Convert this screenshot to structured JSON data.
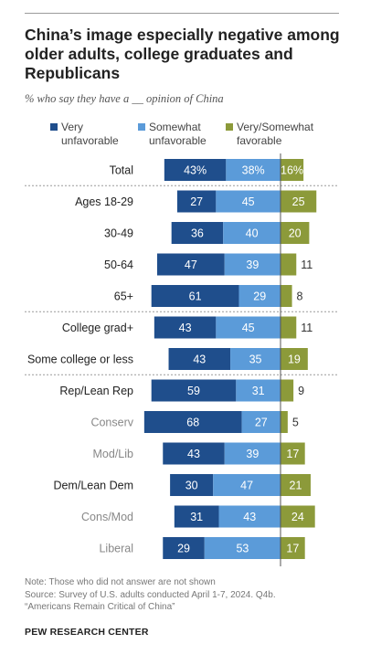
{
  "title": "China’s image especially negative among older adults, college graduates and Republicans",
  "subtitle": "% who say they have a __ opinion of China",
  "legend": [
    {
      "line1": "Very",
      "line2": "unfavorable",
      "color": "#1f4e8c"
    },
    {
      "line1": "Somewhat",
      "line2": "unfavorable",
      "color": "#5b9bd9"
    },
    {
      "line1": "Very/Somewhat",
      "line2": "favorable",
      "color": "#8c9a3a"
    }
  ],
  "chart_data": {
    "type": "bar",
    "stacked": "diverging",
    "series": [
      {
        "name": "Very unfavorable",
        "color": "#1f4e8c"
      },
      {
        "name": "Somewhat unfavorable",
        "color": "#5b9bd9"
      },
      {
        "name": "Very/Somewhat favorable",
        "color": "#8c9a3a"
      }
    ],
    "rows": [
      {
        "label": "Total",
        "very_unfav": 43,
        "somewhat_unfav": 38,
        "favorable": 16,
        "labels": [
          "43%",
          "38%",
          "16%"
        ],
        "emphasis": true
      },
      {
        "label": "Ages 18-29",
        "very_unfav": 27,
        "somewhat_unfav": 45,
        "favorable": 25,
        "labels": [
          "27",
          "45",
          "25"
        ],
        "emphasis": true
      },
      {
        "label": "30-49",
        "very_unfav": 36,
        "somewhat_unfav": 40,
        "favorable": 20,
        "labels": [
          "36",
          "40",
          "20"
        ],
        "emphasis": true
      },
      {
        "label": "50-64",
        "very_unfav": 47,
        "somewhat_unfav": 39,
        "favorable": 11,
        "labels": [
          "47",
          "39",
          "11"
        ],
        "emphasis": true
      },
      {
        "label": "65+",
        "very_unfav": 61,
        "somewhat_unfav": 29,
        "favorable": 8,
        "labels": [
          "61",
          "29",
          "8"
        ],
        "emphasis": true
      },
      {
        "label": "College grad+",
        "very_unfav": 43,
        "somewhat_unfav": 45,
        "favorable": 11,
        "labels": [
          "43",
          "45",
          "11"
        ],
        "emphasis": true
      },
      {
        "label": "Some college or less",
        "very_unfav": 43,
        "somewhat_unfav": 35,
        "favorable": 19,
        "labels": [
          "43",
          "35",
          "19"
        ],
        "emphasis": true
      },
      {
        "label": "Rep/Lean Rep",
        "very_unfav": 59,
        "somewhat_unfav": 31,
        "favorable": 9,
        "labels": [
          "59",
          "31",
          "9"
        ],
        "emphasis": true
      },
      {
        "label": "Conserv",
        "very_unfav": 68,
        "somewhat_unfav": 27,
        "favorable": 5,
        "labels": [
          "68",
          "27",
          "5"
        ],
        "emphasis": false
      },
      {
        "label": "Mod/Lib",
        "very_unfav": 43,
        "somewhat_unfav": 39,
        "favorable": 17,
        "labels": [
          "43",
          "39",
          "17"
        ],
        "emphasis": false
      },
      {
        "label": "Dem/Lean Dem",
        "very_unfav": 30,
        "somewhat_unfav": 47,
        "favorable": 21,
        "labels": [
          "30",
          "47",
          "21"
        ],
        "emphasis": true
      },
      {
        "label": "Cons/Mod",
        "very_unfav": 31,
        "somewhat_unfav": 43,
        "favorable": 24,
        "labels": [
          "31",
          "43",
          "24"
        ],
        "emphasis": false
      },
      {
        "label": "Liberal",
        "very_unfav": 29,
        "somewhat_unfav": 53,
        "favorable": 17,
        "labels": [
          "29",
          "53",
          "17"
        ],
        "emphasis": false
      }
    ],
    "separators_after": [
      "Total",
      "65+",
      "Some college or less"
    ]
  },
  "notes": {
    "note": "Note: Those who did not answer are not shown",
    "source1": "Source: Survey of U.S. adults conducted April 1-7, 2024. Q4b.",
    "source2": "“Americans Remain Critical of China”",
    "org": "PEW RESEARCH CENTER"
  }
}
